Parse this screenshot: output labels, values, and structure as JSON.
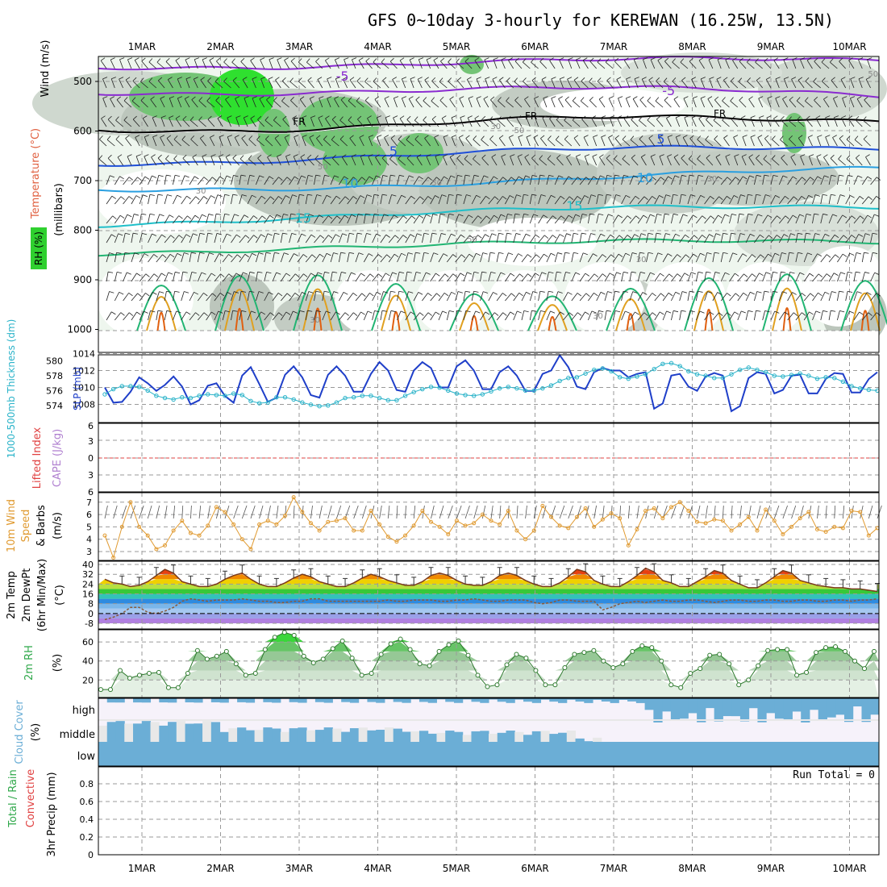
{
  "title": "GFS 0~10day 3-hourly for KEREWAN (16.25W, 13.5N)",
  "dates": [
    "1MAR",
    "2MAR",
    "3MAR",
    "4MAR",
    "5MAR",
    "6MAR",
    "7MAR",
    "8MAR",
    "9MAR",
    "10MAR"
  ],
  "colors": {
    "purple": "#8a2bd0",
    "blue": "#1f4fd8",
    "lblue": "#2a9fe0",
    "cyan": "#1fbfc9",
    "green": "#22b573",
    "orange": "#e0a020",
    "dorange": "#e06010",
    "slp": "#1f3fc9",
    "thick": "#2ab3c9",
    "wind10": "#e09a30",
    "rh": "#2fa84a",
    "cloud": "#6baed6",
    "cloudlight": "#e8e8e8",
    "cape": "#e04040"
  },
  "chart_data": [
    {
      "type": "contour",
      "name": "upper-air",
      "ylabel": "(millibars)",
      "ytick_labels": [
        "500",
        "600",
        "700",
        "800",
        "900",
        "1000"
      ],
      "labels": [
        {
          "text": "-5",
          "day": 6.7
        },
        {
          "text": "-5",
          "day": 2.55
        },
        {
          "text": "FR",
          "day": 2.0
        },
        {
          "text": "FR",
          "day": 4.95
        },
        {
          "text": "FR",
          "day": 7.35
        },
        {
          "text": "5",
          "day": 3.2
        },
        {
          "text": "5",
          "day": 6.6
        },
        {
          "text": "10",
          "day": 2.65
        },
        {
          "text": "10",
          "day": 6.4
        },
        {
          "text": "15",
          "day": 2.05
        },
        {
          "text": "15",
          "day": 5.5
        },
        {
          "text": "50",
          "day": 9.3
        },
        {
          "text": "30",
          "day": 6.35
        },
        {
          "text": "30",
          "day": 7.25
        },
        {
          "text": "50",
          "day": 3.75
        },
        {
          "text": "50",
          "day": 4.2
        },
        {
          "text": "50",
          "day": 2.3
        },
        {
          "text": "50",
          "day": 4.8
        },
        {
          "text": "30",
          "day": 0.75
        },
        {
          "text": "30",
          "day": 2.2
        },
        {
          "text": "30",
          "day": 4.5
        },
        {
          "text": "30",
          "day": 5.8
        }
      ],
      "axis_label_parts": [
        "Wind (m/s)",
        "Temperature (°C)",
        "RH (%)"
      ]
    },
    {
      "type": "line",
      "name": "slp-thickness",
      "ylabel_left": "1000-500mb Thickness (dm)",
      "ylabel_right": "SLP (mb)",
      "left_ticks": [
        "580",
        "578",
        "576",
        "574"
      ],
      "right_ticks": [
        "1014",
        "1012",
        "1010",
        "1008"
      ],
      "series": [
        {
          "name": "SLP (mb)",
          "values": [
            1010,
            1008.2,
            1008.3,
            1009.5,
            1011.2,
            1010.5,
            1009.6,
            1010.3,
            1011.3,
            1010.1,
            1008.0,
            1008.5,
            1010.2,
            1010.5,
            1009.0,
            1008.2,
            1011.4,
            1012.4,
            1010.4,
            1008.3,
            1008.8,
            1011.5,
            1012.5,
            1011.2,
            1009.1,
            1008.8,
            1011.5,
            1012.5,
            1011.4,
            1009.5,
            1009.5,
            1011.6,
            1013.0,
            1012.0,
            1009.7,
            1009.5,
            1012.0,
            1013.0,
            1012.3,
            1010.0,
            1010.0,
            1012.5,
            1013.2,
            1012.0,
            1009.8,
            1009.8,
            1011.8,
            1012.5,
            1011.4,
            1009.6,
            1009.6,
            1011.6,
            1012.0,
            1013.8,
            1012.4,
            1010.1,
            1009.8,
            1011.8,
            1012.3,
            1012.0,
            1012.0,
            1011.2,
            1011.6,
            1011.8,
            1007.5,
            1008.1,
            1011.4,
            1011.6,
            1010.1,
            1009.6,
            1011.3,
            1011.7,
            1011.4,
            1007.2,
            1007.8,
            1011.1,
            1011.8,
            1011.6,
            1009.3,
            1009.7,
            1011.4,
            1011.5,
            1009.3,
            1009.3,
            1011.0,
            1011.7,
            1011.6,
            1009.4,
            1009.4,
            1011.0,
            1011.8
          ]
        },
        {
          "name": "1000-500mb Thickness (dm)",
          "values": [
            575.5,
            576.2,
            576.6,
            576.6,
            576.5,
            576.0,
            575.3,
            575.0,
            574.8,
            575.1,
            575.0,
            575.3,
            575.5,
            575.4,
            575.3,
            575.6,
            575.4,
            574.6,
            574.3,
            574.4,
            575.1,
            575.1,
            574.8,
            574.4,
            574.1,
            573.9,
            574.0,
            574.4,
            575.0,
            575.1,
            575.3,
            575.3,
            575.0,
            574.7,
            574.7,
            575.3,
            575.8,
            576.2,
            576.5,
            576.4,
            576.0,
            575.6,
            575.4,
            575.3,
            575.5,
            575.9,
            576.3,
            576.5,
            576.3,
            576.0,
            576.0,
            576.3,
            576.7,
            577.3,
            577.7,
            577.8,
            578.3,
            578.8,
            579.0,
            578.6,
            577.8,
            577.6,
            577.9,
            578.2,
            578.9,
            579.6,
            579.7,
            579.3,
            578.6,
            578.2,
            578.0,
            577.7,
            577.7,
            578.2,
            578.8,
            579.1,
            578.8,
            578.5,
            578.0,
            577.9,
            578.1,
            578.3,
            578.0,
            577.6,
            577.8,
            577.7,
            577.2,
            576.6,
            576.3,
            576.1,
            576.0
          ]
        }
      ]
    },
    {
      "type": "line",
      "name": "cape-li",
      "ylabel_left": "Lifted Index",
      "ylabel_right": "CAPE (J/kg)",
      "ticks": [
        "6",
        "3",
        "0",
        "3",
        "6"
      ],
      "series": [
        {
          "name": "Lifted Index",
          "values": [
            0,
            0
          ]
        }
      ]
    },
    {
      "type": "line",
      "name": "wind10m",
      "ylabel": "10m Wind Speed & Barbs (m/s)",
      "ticks": [
        "7",
        "6",
        "5",
        "4",
        "3"
      ],
      "series": [
        {
          "name": "10m Wind Speed (m/s)",
          "values": [
            4.3,
            2.5,
            5.0,
            7.0,
            5.0,
            4.3,
            3.2,
            3.5,
            4.7,
            5.5,
            4.5,
            4.3,
            5.1,
            6.6,
            6.2,
            5.2,
            4.0,
            3.2,
            5.2,
            5.5,
            5.2,
            5.9,
            7.4,
            6.2,
            5.3,
            4.7,
            5.4,
            5.5,
            5.7,
            4.7,
            4.7,
            6.3,
            5.2,
            4.2,
            3.8,
            4.3,
            5.1,
            6.3,
            5.4,
            5.0,
            4.4,
            5.5,
            5.1,
            5.3,
            6.0,
            5.5,
            5.2,
            6.3,
            4.7,
            4.0,
            4.7,
            6.7,
            5.8,
            5.1,
            4.9,
            5.8,
            6.5,
            5.0,
            5.6,
            6.1,
            5.7,
            3.5,
            4.8,
            6.3,
            6.5,
            5.7,
            6.6,
            7.0,
            6.3,
            5.4,
            5.3,
            5.6,
            5.5,
            4.7,
            5.2,
            5.8,
            4.7,
            6.4,
            5.5,
            4.4,
            5.0,
            5.7,
            6.2,
            4.8,
            4.6,
            5.0,
            4.9,
            6.3,
            6.2,
            4.3,
            4.9
          ]
        }
      ]
    },
    {
      "type": "area",
      "name": "temp2m",
      "ylabel": "2m Temp 2m DewPt (6hr Min/Max) (°C)",
      "ticks": [
        "40",
        "32",
        "24",
        "16",
        "8",
        "0",
        "-8"
      ],
      "series": [
        {
          "name": "2m Temp",
          "values": [
            28,
            25,
            24,
            22,
            23,
            26,
            31,
            36,
            33,
            26,
            24,
            22,
            22,
            24,
            28,
            31,
            33,
            28,
            24,
            22,
            22,
            25,
            29,
            32,
            30,
            26,
            24,
            22,
            22,
            25,
            29,
            32,
            30,
            27,
            25,
            23,
            23,
            26,
            31,
            33,
            31,
            27,
            24,
            23,
            23,
            26,
            31,
            33,
            31,
            27,
            24,
            22,
            22,
            25,
            30,
            36,
            34,
            27,
            24,
            22,
            22,
            26,
            31,
            37,
            34,
            27,
            25,
            22,
            22,
            26,
            30,
            35,
            33,
            27,
            24,
            21,
            21,
            25,
            30,
            35,
            33,
            27,
            25,
            23,
            22,
            21,
            21,
            20,
            20,
            19,
            18
          ]
        },
        {
          "name": "2m DewPt",
          "values": [
            -5,
            -3,
            0,
            5,
            5,
            1,
            0,
            2,
            5,
            10,
            12,
            11,
            10,
            11,
            11,
            11,
            12,
            11,
            10,
            10,
            9,
            9,
            10,
            10,
            12,
            12,
            10,
            10,
            10,
            10,
            10,
            10,
            10,
            11,
            10,
            10,
            11,
            11,
            11,
            10,
            10,
            11,
            11,
            12,
            11,
            10,
            10,
            11,
            11,
            11,
            9,
            8,
            9,
            11,
            11,
            10,
            10,
            10,
            3,
            5,
            8,
            9,
            10,
            9,
            10,
            11,
            10,
            10,
            11,
            11,
            10,
            9,
            10,
            11,
            11,
            10,
            10,
            11,
            11,
            10,
            10,
            11,
            11,
            10,
            10,
            11,
            11,
            10,
            11,
            11,
            12
          ]
        }
      ]
    },
    {
      "type": "area",
      "name": "rh2m",
      "ylabel": "2m RH (%)",
      "ticks": [
        "60",
        "40",
        "20"
      ],
      "series": [
        {
          "name": "2m RH",
          "values": [
            10,
            10,
            30,
            22,
            25,
            27,
            28,
            12,
            12,
            27,
            51,
            42,
            45,
            50,
            37,
            25,
            27,
            52,
            65,
            70,
            67,
            45,
            38,
            42,
            53,
            61,
            43,
            25,
            27,
            47,
            58,
            63,
            52,
            37,
            35,
            50,
            57,
            61,
            46,
            25,
            13,
            15,
            36,
            47,
            43,
            30,
            15,
            15,
            33,
            47,
            49,
            51,
            40,
            33,
            37,
            50,
            56,
            54,
            40,
            15,
            12,
            27,
            32,
            46,
            47,
            37,
            15,
            20,
            35,
            51,
            52,
            52,
            25,
            28,
            49,
            54,
            55,
            50,
            40,
            32,
            50
          ]
        }
      ]
    },
    {
      "type": "heatmap",
      "name": "cloud-cover",
      "ylabel": "Cloud Cover (%)",
      "levels": [
        "high",
        "middle",
        "low"
      ]
    },
    {
      "type": "bar",
      "name": "precip",
      "ylabel": "3hr Precip (mm)",
      "ylabel_left_parts": [
        "Total / Rain",
        "Convective"
      ],
      "run_total_label": "Run Total = 0",
      "ticks": [
        "0.8",
        "0.6",
        "0.4",
        "0.2",
        "0"
      ],
      "values": []
    }
  ]
}
